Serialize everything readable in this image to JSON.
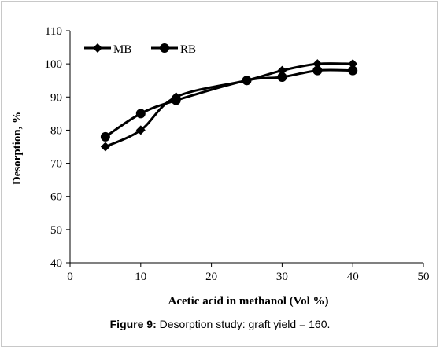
{
  "chart_data": {
    "type": "line",
    "xlabel": "Acetic acid in methanol (Vol %)",
    "ylabel": "Desorption, %",
    "xlim": [
      0,
      50
    ],
    "ylim": [
      40,
      110
    ],
    "x_ticks": [
      0,
      10,
      20,
      30,
      40,
      50
    ],
    "y_ticks": [
      40,
      50,
      60,
      70,
      80,
      90,
      100,
      110
    ],
    "grid": false,
    "legend_position": "top-left",
    "series": [
      {
        "name": "MB",
        "marker": "diamond",
        "color": "#000000",
        "x": [
          5,
          10,
          15,
          25,
          30,
          35,
          40
        ],
        "y": [
          75,
          80,
          90,
          95,
          98,
          100,
          100
        ]
      },
      {
        "name": "RB",
        "marker": "circle",
        "color": "#000000",
        "x": [
          5,
          10,
          15,
          25,
          30,
          35,
          40
        ],
        "y": [
          78,
          85,
          89,
          95,
          96,
          98,
          98
        ]
      }
    ]
  },
  "caption": {
    "label": "Figure 9:",
    "text": " Desorption study: graft yield = 160."
  }
}
